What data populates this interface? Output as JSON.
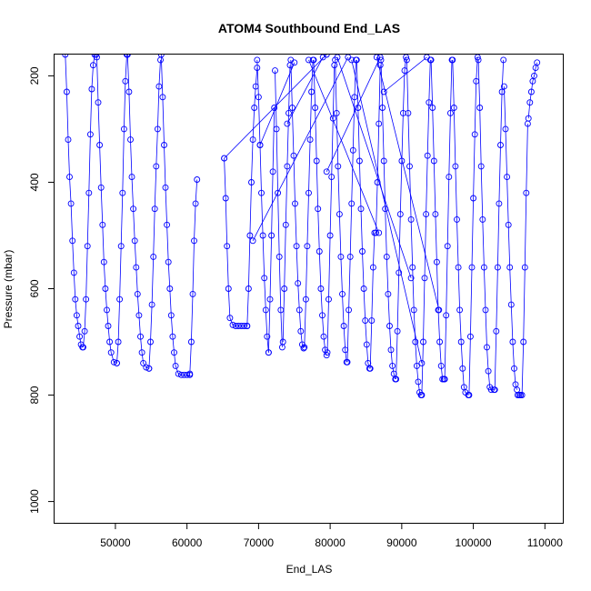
{
  "chart_data": {
    "type": "scatter",
    "title": "ATOM4 Southbound End_LAS",
    "xlabel": "End_LAS",
    "ylabel": "Pressure (mbar)",
    "xlim": [
      41500,
      112500
    ],
    "ylim": [
      1040,
      160
    ],
    "y_reversed": true,
    "x_ticks": [
      50000,
      60000,
      70000,
      80000,
      90000,
      100000,
      110000
    ],
    "x_tick_labels": [
      "50000",
      "60000",
      "70000",
      "80000",
      "90000",
      "100000",
      "110000"
    ],
    "y_ticks": [
      200,
      400,
      600,
      800,
      1000
    ],
    "y_tick_labels": [
      "200",
      "400",
      "600",
      "800",
      "1000"
    ],
    "grid": false,
    "legend": "none",
    "marker": "open-circle",
    "line_color": "#0000ff",
    "point_color": "#0000ff",
    "series": [
      {
        "x": [
          43000,
          43200,
          43400,
          43600,
          43800,
          44000,
          44200,
          44400,
          44600,
          44800,
          45000,
          45200,
          45400
        ],
        "y": [
          160,
          230,
          320,
          390,
          440,
          510,
          570,
          620,
          650,
          670,
          690,
          705,
          710
        ]
      },
      {
        "x": [
          45500,
          45700,
          45900,
          46100,
          46300,
          46500,
          46700,
          46900,
          47100,
          47300
        ],
        "y": [
          710,
          680,
          620,
          520,
          420,
          310,
          225,
          180,
          160,
          160
        ]
      },
      {
        "x": [
          47400,
          47600,
          47800,
          48000,
          48200,
          48400,
          48600,
          48800,
          49000,
          49200,
          49400,
          49800,
          50200
        ],
        "y": [
          165,
          250,
          330,
          410,
          480,
          550,
          600,
          640,
          670,
          700,
          720,
          738,
          740
        ]
      },
      {
        "x": [
          50200,
          50400,
          50600,
          50800,
          51000,
          51200,
          51400,
          51600
        ],
        "y": [
          740,
          700,
          620,
          520,
          420,
          300,
          210,
          160
        ]
      },
      {
        "x": [
          51700,
          51900,
          52100,
          52300,
          52500,
          52700,
          52900,
          53100,
          53300,
          53500,
          53700,
          53900,
          54300,
          54700
        ],
        "y": [
          160,
          230,
          320,
          390,
          450,
          510,
          560,
          610,
          650,
          690,
          720,
          740,
          748,
          750
        ]
      },
      {
        "x": [
          54700,
          54900,
          55100,
          55300,
          55500,
          55700,
          55900,
          56100,
          56300
        ],
        "y": [
          750,
          700,
          630,
          540,
          450,
          370,
          300,
          220,
          170
        ]
      },
      {
        "x": [
          56400,
          56600,
          56800,
          57000,
          57200,
          57400,
          57600,
          57800,
          58000,
          58200,
          58400,
          58800,
          59200,
          59600,
          60000,
          60400
        ],
        "y": [
          160,
          240,
          330,
          410,
          480,
          550,
          600,
          650,
          690,
          720,
          745,
          760,
          762,
          762,
          762,
          762
        ]
      },
      {
        "x": [
          60400,
          60600,
          60800,
          61000,
          61200,
          61400
        ],
        "y": [
          760,
          700,
          610,
          510,
          440,
          395
        ]
      },
      {
        "x": [
          65200,
          65400,
          65600,
          65800,
          66000,
          66400,
          66800,
          67200,
          67600,
          68000,
          68400
        ],
        "y": [
          355,
          430,
          520,
          600,
          655,
          668,
          670,
          670,
          670,
          670,
          670
        ]
      },
      {
        "x": [
          68400,
          68600,
          68800,
          69000,
          69200,
          69400,
          69600,
          69800
        ],
        "y": [
          670,
          600,
          500,
          400,
          320,
          260,
          220,
          185
        ]
      },
      {
        "x": [
          69800,
          70000,
          70200,
          70400,
          70600,
          70800,
          71000,
          71200,
          71400
        ],
        "y": [
          170,
          240,
          330,
          420,
          500,
          580,
          640,
          690,
          720
        ]
      },
      {
        "x": [
          71400,
          71600,
          71800,
          72000,
          72200
        ],
        "y": [
          720,
          620,
          500,
          380,
          260
        ]
      },
      {
        "x": [
          72300,
          72500,
          72700,
          72900,
          73100,
          73300
        ],
        "y": [
          190,
          300,
          420,
          540,
          640,
          710
        ]
      },
      {
        "x": [
          73400,
          73600,
          73800,
          74000,
          74200,
          74400
        ],
        "y": [
          700,
          600,
          480,
          370,
          270,
          180
        ]
      },
      {
        "x": [
          74500,
          74700,
          74900,
          75100,
          75300,
          75500,
          75700,
          75900,
          76100,
          76300
        ],
        "y": [
          170,
          260,
          350,
          440,
          520,
          590,
          640,
          680,
          705,
          712
        ]
      },
      {
        "x": [
          76400,
          76600,
          76800,
          77000,
          77200,
          77400,
          77600
        ],
        "y": [
          710,
          620,
          520,
          420,
          320,
          230,
          170
        ]
      },
      {
        "x": [
          77700,
          77900,
          78100,
          78300,
          78500,
          78700,
          78900,
          79100,
          79300,
          79500
        ],
        "y": [
          170,
          260,
          360,
          450,
          530,
          600,
          650,
          690,
          715,
          725
        ]
      },
      {
        "x": [
          79600,
          79800,
          80000,
          80200,
          80400,
          80600
        ],
        "y": [
          720,
          620,
          500,
          390,
          280,
          180
        ]
      },
      {
        "x": [
          80700,
          80900,
          81100,
          81300,
          81500,
          81700,
          81900,
          82100,
          82300
        ],
        "y": [
          170,
          270,
          370,
          460,
          540,
          610,
          670,
          715,
          738
        ]
      },
      {
        "x": [
          82400,
          82600,
          82800,
          83000,
          83200,
          83400,
          83600
        ],
        "y": [
          738,
          640,
          540,
          440,
          340,
          240,
          170
        ]
      },
      {
        "x": [
          83700,
          83900,
          84100,
          84300,
          84500,
          84700,
          84900,
          85100,
          85300,
          85500
        ],
        "y": [
          170,
          260,
          360,
          450,
          530,
          600,
          660,
          705,
          740,
          750
        ]
      },
      {
        "x": [
          85600,
          85800,
          86000,
          86200,
          86400,
          86600,
          86800,
          87000
        ],
        "y": [
          750,
          660,
          560,
          495,
          495,
          400,
          290,
          180
        ]
      },
      {
        "x": [
          87100,
          87300,
          87500,
          87700,
          87900,
          88100,
          88300,
          88500,
          88700,
          88900,
          89100
        ],
        "y": [
          170,
          260,
          360,
          450,
          540,
          610,
          670,
          715,
          745,
          760,
          770
        ]
      },
      {
        "x": [
          89200,
          89400,
          89600,
          89800,
          90000,
          90200,
          90400,
          90600
        ],
        "y": [
          770,
          680,
          570,
          460,
          360,
          270,
          190,
          165
        ]
      },
      {
        "x": [
          90700,
          90900,
          91100,
          91300,
          91500,
          91700,
          91900,
          92100,
          92300,
          92500,
          92700
        ],
        "y": [
          170,
          270,
          370,
          470,
          560,
          640,
          700,
          745,
          775,
          795,
          800
        ]
      },
      {
        "x": [
          92800,
          93000,
          93200,
          93400,
          93600,
          93800,
          94000
        ],
        "y": [
          800,
          700,
          580,
          460,
          350,
          250,
          170
        ]
      },
      {
        "x": [
          94100,
          94300,
          94500,
          94700,
          94900,
          95100,
          95300,
          95500,
          95700,
          95900
        ],
        "y": [
          170,
          260,
          360,
          460,
          550,
          640,
          700,
          745,
          770,
          770
        ]
      },
      {
        "x": [
          96000,
          96200,
          96400,
          96600,
          96800,
          97000
        ],
        "y": [
          770,
          650,
          520,
          390,
          270,
          170
        ]
      },
      {
        "x": [
          97100,
          97300,
          97500,
          97700,
          97900,
          98100,
          98300,
          98500,
          98700,
          98900,
          99300
        ],
        "y": [
          170,
          260,
          370,
          470,
          560,
          640,
          700,
          750,
          785,
          795,
          800
        ]
      },
      {
        "x": [
          99400,
          99600,
          99800,
          100000,
          100200,
          100400,
          100600
        ],
        "y": [
          800,
          690,
          560,
          430,
          310,
          210,
          165
        ]
      },
      {
        "x": [
          100700,
          100900,
          101100,
          101300,
          101500,
          101700,
          101900,
          102100,
          102300,
          102500,
          102900
        ],
        "y": [
          170,
          260,
          370,
          470,
          560,
          640,
          710,
          755,
          785,
          790,
          790
        ]
      },
      {
        "x": [
          103000,
          103200,
          103400,
          103600,
          103800,
          104000,
          104200
        ],
        "y": [
          790,
          680,
          560,
          440,
          330,
          230,
          170
        ]
      },
      {
        "x": [
          104300,
          104500,
          104700,
          104900,
          105100,
          105300,
          105500,
          105700,
          105900,
          106100
        ],
        "y": [
          220,
          300,
          390,
          480,
          560,
          630,
          700,
          750,
          780,
          790
        ]
      },
      {
        "x": [
          106200,
          106400,
          106600,
          106800,
          107000,
          107200,
          107400,
          107600
        ],
        "y": [
          800,
          800,
          800,
          800,
          700,
          560,
          420,
          290
        ]
      },
      {
        "x": [
          107700,
          107900,
          108100,
          108300,
          108500,
          108700,
          108900
        ],
        "y": [
          280,
          250,
          230,
          210,
          200,
          185,
          175
        ]
      },
      {
        "x": [
          65200,
          79500
        ],
        "y": [
          355,
          160
        ]
      },
      {
        "x": [
          69200,
          82500
        ],
        "y": [
          510,
          165
        ]
      },
      {
        "x": [
          77000,
          86800
        ],
        "y": [
          170,
          495
        ]
      },
      {
        "x": [
          81000,
          91300
        ],
        "y": [
          165,
          580
        ]
      },
      {
        "x": [
          83000,
          92800
        ],
        "y": [
          170,
          740
        ]
      },
      {
        "x": [
          86500,
          95200
        ],
        "y": [
          165,
          640
        ]
      },
      {
        "x": [
          70200,
          75000
        ],
        "y": [
          330,
          175
        ]
      },
      {
        "x": [
          74000,
          79000
        ],
        "y": [
          290,
          165
        ]
      },
      {
        "x": [
          79500,
          87000
        ],
        "y": [
          380,
          165
        ]
      },
      {
        "x": [
          87500,
          93500
        ],
        "y": [
          230,
          165
        ]
      }
    ]
  }
}
